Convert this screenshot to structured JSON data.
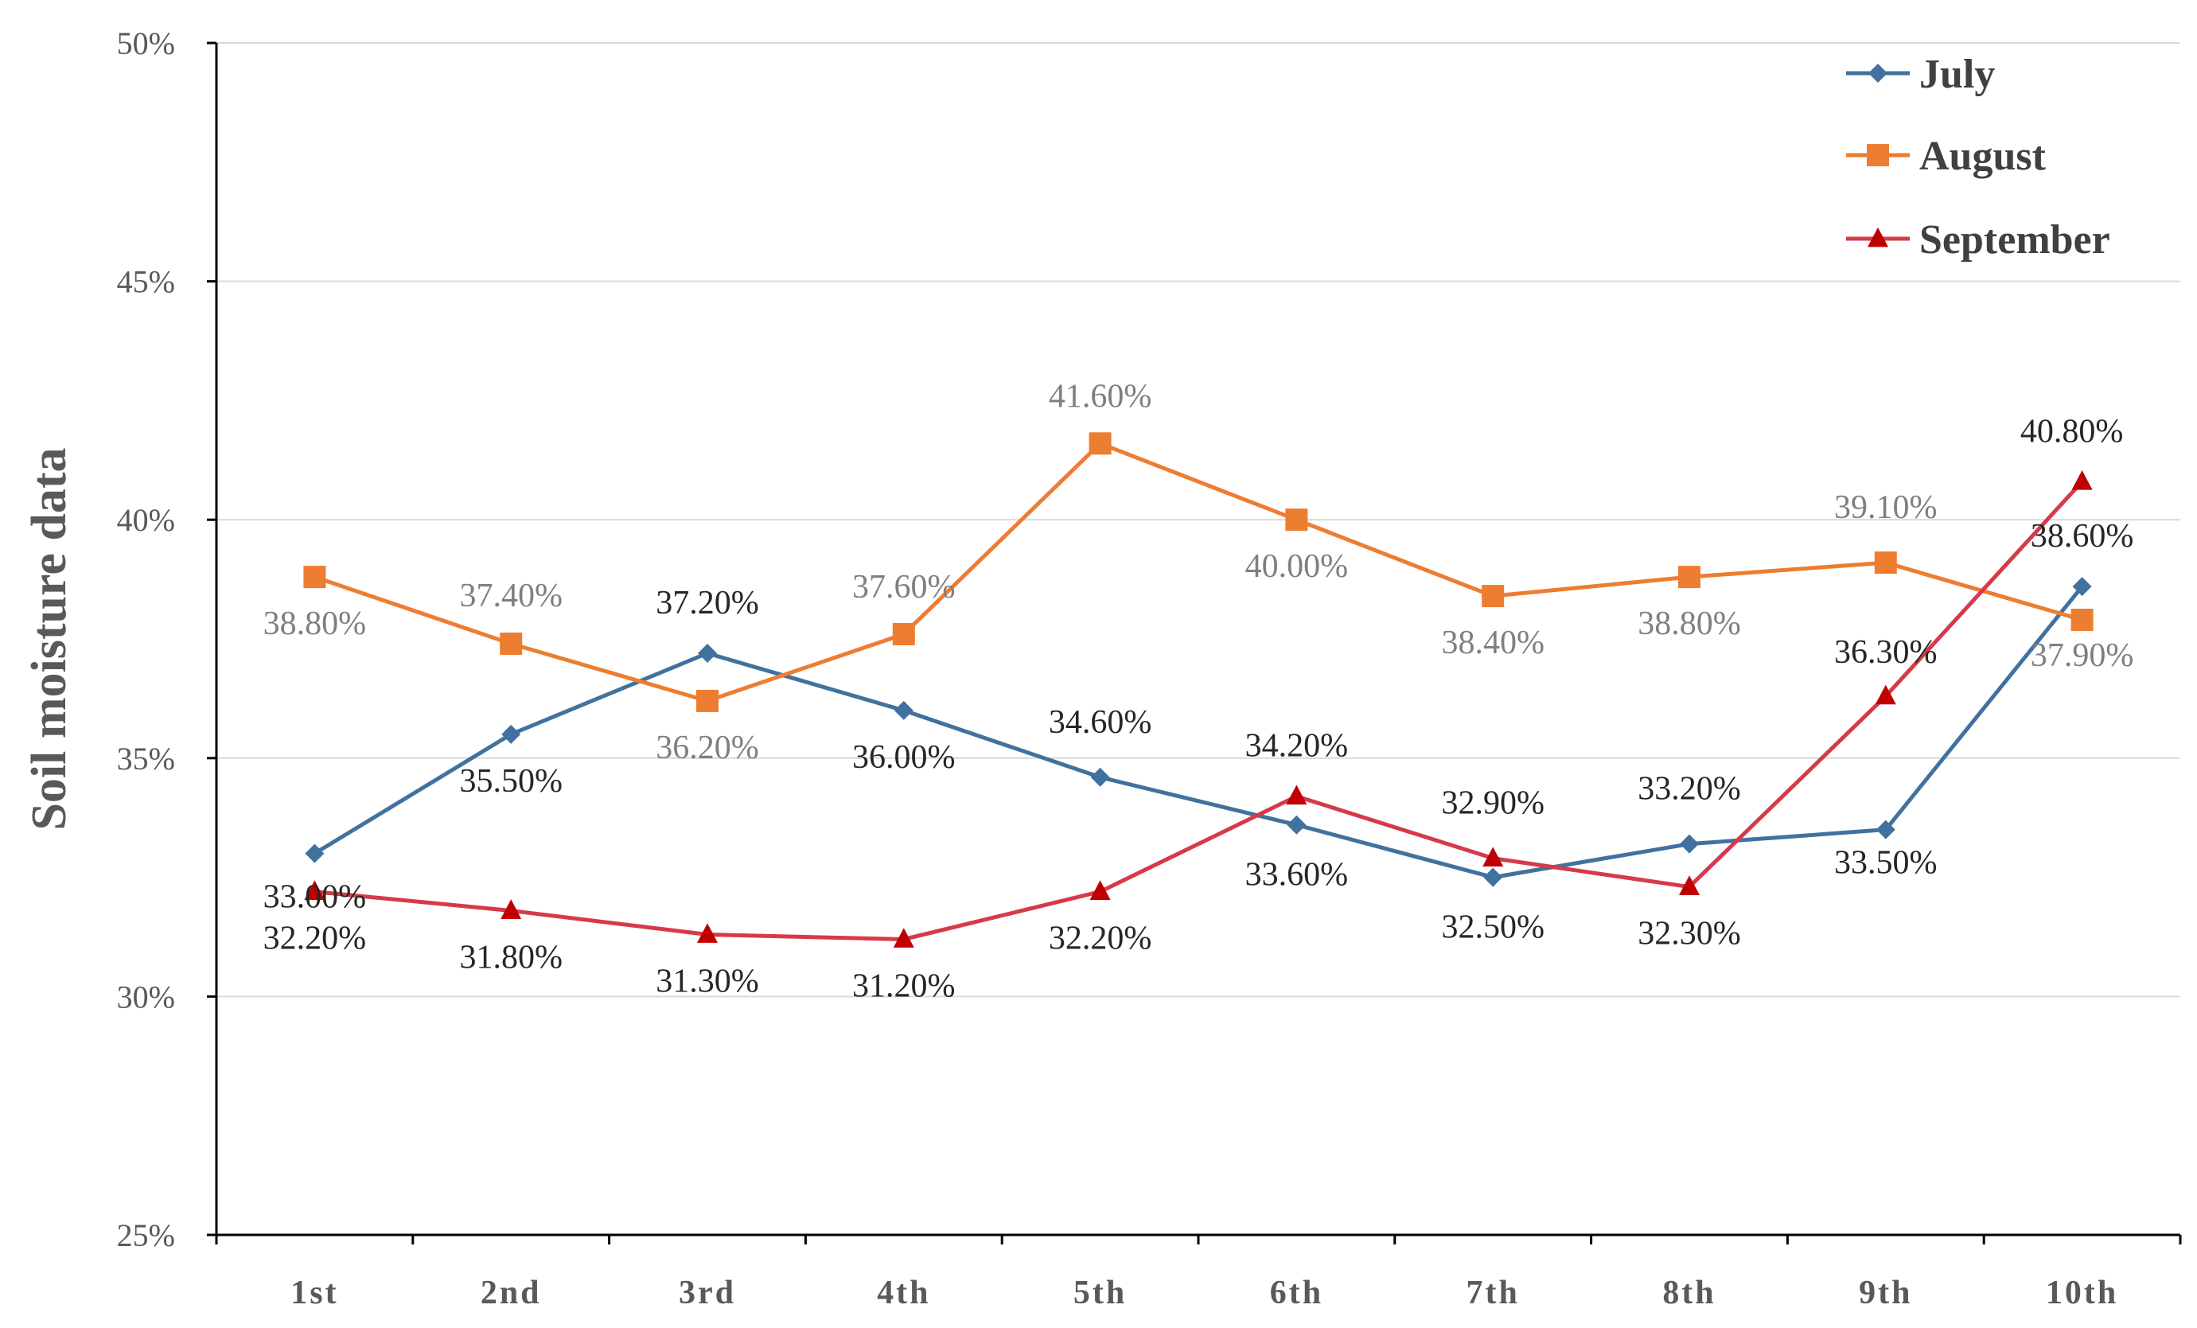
{
  "chart_data": {
    "type": "line",
    "title": "",
    "xlabel": "",
    "ylabel": "Soil moisture data",
    "ylim": [
      25,
      50
    ],
    "yticks": [
      "25%",
      "30%",
      "35%",
      "40%",
      "45%",
      "50%"
    ],
    "grid": true,
    "legend_position": "top-right",
    "categories": [
      "1st",
      "2nd",
      "3rd",
      "4th",
      "5th",
      "6th",
      "7th",
      "8th",
      "9th",
      "10th"
    ],
    "series": [
      {
        "name": "July",
        "color": "#41729f",
        "marker": "diamond",
        "label_color": "#262626",
        "values": [
          33.0,
          35.5,
          37.2,
          36.0,
          34.6,
          33.6,
          32.5,
          33.2,
          33.5,
          38.6
        ],
        "labels": [
          "33.00%",
          "35.50%",
          "37.20%",
          "36.00%",
          "34.60%",
          "33.60%",
          "32.50%",
          "33.20%",
          "33.50%",
          "38.60%"
        ]
      },
      {
        "name": "August",
        "color": "#ed7d31",
        "marker": "square",
        "label_color": "#7f7f7f",
        "values": [
          38.8,
          37.4,
          36.2,
          37.6,
          41.6,
          40.0,
          38.4,
          38.8,
          39.1,
          37.9
        ],
        "labels": [
          "38.80%",
          "37.40%",
          "36.20%",
          "37.60%",
          "41.60%",
          "40.00%",
          "38.40%",
          "38.80%",
          "39.10%",
          "37.90%"
        ]
      },
      {
        "name": "September",
        "color": "#d63a4a",
        "marker_color": "#c00000",
        "marker": "triangle",
        "label_color": "#262626",
        "values": [
          32.2,
          31.8,
          31.3,
          31.2,
          32.2,
          34.2,
          32.9,
          32.3,
          36.3,
          40.8
        ],
        "labels": [
          "32.20%",
          "31.80%",
          "31.30%",
          "31.20%",
          "32.20%",
          "34.20%",
          "32.90%",
          "32.30%",
          "36.30%",
          "40.80%"
        ]
      }
    ]
  }
}
